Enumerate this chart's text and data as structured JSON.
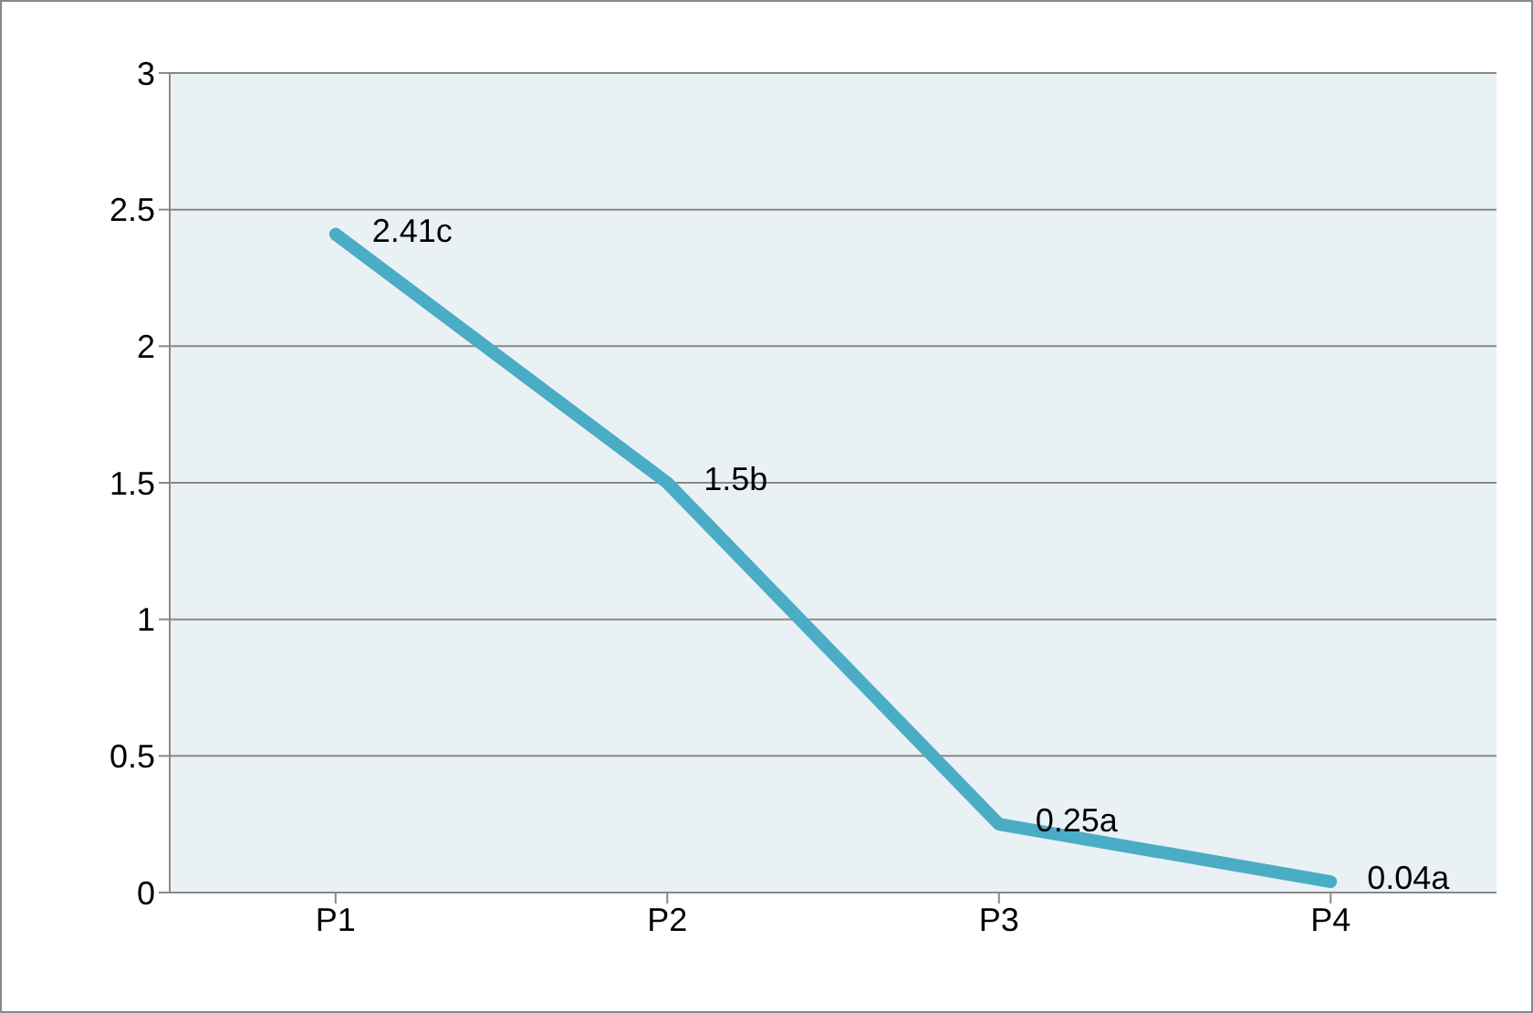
{
  "chart_data": {
    "type": "line",
    "categories": [
      "P1",
      "P2",
      "P3",
      "P4"
    ],
    "series": [
      {
        "color": "#4bacc6",
        "values": [
          2.41,
          1.5,
          0.25,
          0.04
        ],
        "value_labels": [
          "2.41c",
          "1.5b",
          "0.25a",
          "0.04a"
        ]
      }
    ],
    "ylim": [
      0,
      3
    ],
    "yticks": [
      0,
      0.5,
      1,
      1.5,
      2,
      2.5,
      3
    ],
    "grid": "y",
    "legend": false,
    "marker": "none",
    "line_style": "solid"
  }
}
